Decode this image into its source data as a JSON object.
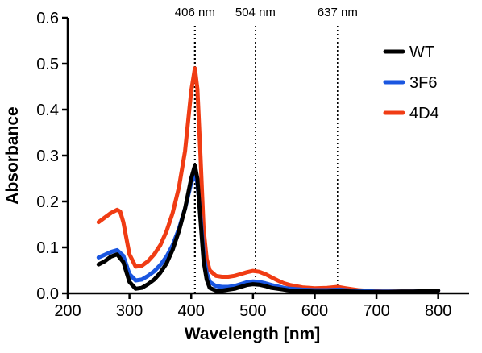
{
  "chart_data": {
    "type": "line",
    "title": "",
    "xlabel": "Wavelength [nm]",
    "ylabel": "Absorbance",
    "xlim": [
      200,
      850
    ],
    "ylim": [
      0,
      0.6
    ],
    "xticks": [
      200,
      300,
      400,
      500,
      600,
      700,
      800
    ],
    "yticks": [
      0.0,
      0.1,
      0.2,
      0.3,
      0.4,
      0.5,
      0.6
    ],
    "xtick_labels": [
      "200",
      "300",
      "400",
      "500",
      "600",
      "700",
      "800"
    ],
    "ytick_labels": [
      "0.0",
      "0.1",
      "0.2",
      "0.3",
      "0.4",
      "0.5",
      "0.6"
    ],
    "grid": false,
    "legend_position": "top-right",
    "annotations": [
      {
        "x": 406,
        "label": "406 nm",
        "style": "dotted vertical line"
      },
      {
        "x": 504,
        "label": "504 nm",
        "style": "dotted vertical line"
      },
      {
        "x": 637,
        "label": "637 nm",
        "style": "dotted vertical line"
      }
    ],
    "series": [
      {
        "name": "WT",
        "color": "#000000",
        "points": [
          [
            250,
            0.063
          ],
          [
            260,
            0.07
          ],
          [
            270,
            0.08
          ],
          [
            280,
            0.085
          ],
          [
            290,
            0.068
          ],
          [
            300,
            0.025
          ],
          [
            310,
            0.01
          ],
          [
            320,
            0.012
          ],
          [
            330,
            0.02
          ],
          [
            340,
            0.03
          ],
          [
            350,
            0.045
          ],
          [
            360,
            0.065
          ],
          [
            370,
            0.095
          ],
          [
            380,
            0.135
          ],
          [
            390,
            0.185
          ],
          [
            400,
            0.25
          ],
          [
            406,
            0.278
          ],
          [
            410,
            0.25
          ],
          [
            415,
            0.16
          ],
          [
            420,
            0.07
          ],
          [
            425,
            0.03
          ],
          [
            430,
            0.012
          ],
          [
            440,
            0.006
          ],
          [
            450,
            0.006
          ],
          [
            460,
            0.008
          ],
          [
            470,
            0.01
          ],
          [
            480,
            0.014
          ],
          [
            490,
            0.018
          ],
          [
            500,
            0.02
          ],
          [
            510,
            0.019
          ],
          [
            520,
            0.016
          ],
          [
            530,
            0.012
          ],
          [
            540,
            0.01
          ],
          [
            550,
            0.008
          ],
          [
            560,
            0.006
          ],
          [
            580,
            0.005
          ],
          [
            600,
            0.004
          ],
          [
            620,
            0.004
          ],
          [
            640,
            0.005
          ],
          [
            660,
            0.004
          ],
          [
            680,
            0.003
          ],
          [
            700,
            0.003
          ],
          [
            720,
            0.003
          ],
          [
            740,
            0.004
          ],
          [
            760,
            0.004
          ],
          [
            780,
            0.005
          ],
          [
            800,
            0.006
          ]
        ]
      },
      {
        "name": "3F6",
        "color": "#1a56e0",
        "points": [
          [
            250,
            0.078
          ],
          [
            260,
            0.084
          ],
          [
            270,
            0.09
          ],
          [
            280,
            0.094
          ],
          [
            290,
            0.082
          ],
          [
            300,
            0.042
          ],
          [
            310,
            0.028
          ],
          [
            320,
            0.03
          ],
          [
            330,
            0.038
          ],
          [
            340,
            0.048
          ],
          [
            350,
            0.062
          ],
          [
            360,
            0.08
          ],
          [
            370,
            0.105
          ],
          [
            380,
            0.14
          ],
          [
            390,
            0.185
          ],
          [
            400,
            0.24
          ],
          [
            406,
            0.26
          ],
          [
            410,
            0.24
          ],
          [
            415,
            0.17
          ],
          [
            420,
            0.085
          ],
          [
            425,
            0.045
          ],
          [
            430,
            0.025
          ],
          [
            440,
            0.016
          ],
          [
            450,
            0.014
          ],
          [
            460,
            0.014
          ],
          [
            470,
            0.016
          ],
          [
            480,
            0.02
          ],
          [
            490,
            0.024
          ],
          [
            500,
            0.026
          ],
          [
            510,
            0.025
          ],
          [
            520,
            0.022
          ],
          [
            530,
            0.018
          ],
          [
            540,
            0.015
          ],
          [
            550,
            0.012
          ],
          [
            560,
            0.01
          ],
          [
            580,
            0.008
          ],
          [
            600,
            0.007
          ],
          [
            620,
            0.007
          ],
          [
            640,
            0.008
          ],
          [
            660,
            0.006
          ],
          [
            680,
            0.005
          ],
          [
            700,
            0.004
          ],
          [
            720,
            0.004
          ],
          [
            740,
            0.004
          ],
          [
            760,
            0.004
          ],
          [
            780,
            0.005
          ],
          [
            800,
            0.006
          ]
        ]
      },
      {
        "name": "4D4",
        "color": "#f03c14",
        "points": [
          [
            250,
            0.155
          ],
          [
            260,
            0.165
          ],
          [
            270,
            0.175
          ],
          [
            280,
            0.182
          ],
          [
            285,
            0.178
          ],
          [
            290,
            0.155
          ],
          [
            300,
            0.085
          ],
          [
            310,
            0.058
          ],
          [
            320,
            0.06
          ],
          [
            330,
            0.07
          ],
          [
            340,
            0.085
          ],
          [
            350,
            0.105
          ],
          [
            360,
            0.135
          ],
          [
            370,
            0.175
          ],
          [
            380,
            0.23
          ],
          [
            390,
            0.31
          ],
          [
            400,
            0.44
          ],
          [
            406,
            0.49
          ],
          [
            410,
            0.445
          ],
          [
            415,
            0.3
          ],
          [
            420,
            0.14
          ],
          [
            425,
            0.075
          ],
          [
            430,
            0.05
          ],
          [
            440,
            0.038
          ],
          [
            450,
            0.036
          ],
          [
            460,
            0.036
          ],
          [
            470,
            0.038
          ],
          [
            480,
            0.042
          ],
          [
            490,
            0.046
          ],
          [
            500,
            0.049
          ],
          [
            510,
            0.047
          ],
          [
            520,
            0.042
          ],
          [
            530,
            0.035
          ],
          [
            540,
            0.028
          ],
          [
            550,
            0.022
          ],
          [
            560,
            0.018
          ],
          [
            580,
            0.013
          ],
          [
            600,
            0.011
          ],
          [
            620,
            0.012
          ],
          [
            637,
            0.014
          ],
          [
            650,
            0.011
          ],
          [
            670,
            0.007
          ],
          [
            690,
            0.005
          ],
          [
            710,
            0.004
          ],
          [
            730,
            0.004
          ],
          [
            750,
            0.004
          ],
          [
            770,
            0.004
          ],
          [
            790,
            0.005
          ],
          [
            800,
            0.006
          ]
        ]
      }
    ]
  }
}
